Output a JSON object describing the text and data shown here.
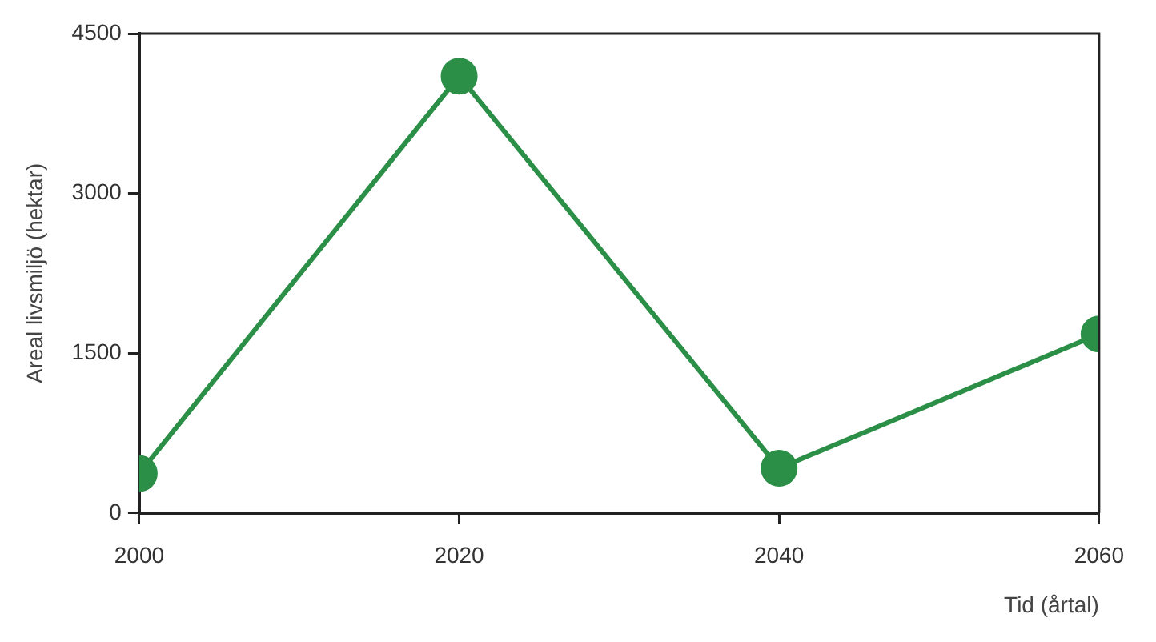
{
  "chart_data": {
    "type": "line",
    "xlabel": "Tid (årtal)",
    "ylabel": "Areal livsmiljö (hektar)",
    "x": [
      2000,
      2020,
      2040,
      2060
    ],
    "series": [
      {
        "color": "#2b8f47",
        "values": [
          370,
          4100,
          420,
          1680
        ]
      }
    ],
    "xlim": [
      2000,
      2060
    ],
    "xticks": [
      2000,
      2020,
      2040,
      2060
    ],
    "ylim": [
      0,
      4500
    ],
    "yticks": [
      0,
      1500,
      3000,
      4500
    ],
    "grid": false,
    "legend": false,
    "marker": "circle",
    "line_style": "solid"
  }
}
